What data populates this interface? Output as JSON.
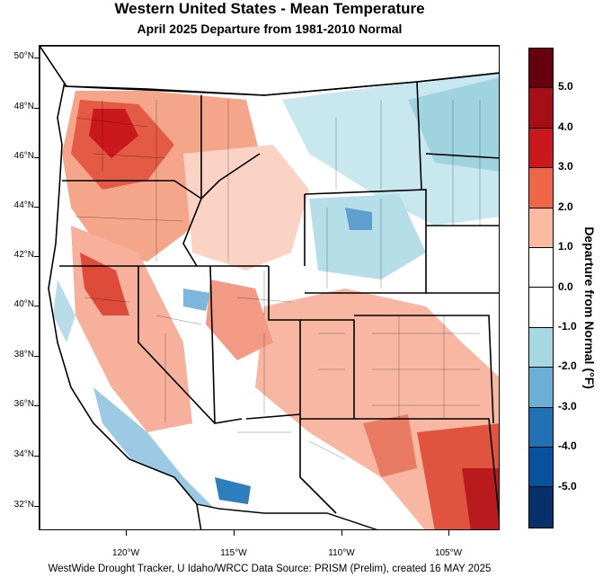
{
  "title": "Western United States - Mean Temperature",
  "subtitle": "April 2025  Departure from 1981-2010 Normal",
  "latitude_labels": [
    "50°N",
    "48°N",
    "46°N",
    "44°N",
    "42°N",
    "40°N",
    "38°N",
    "36°N",
    "34°N",
    "32°N"
  ],
  "longitude_labels": [
    "120°W",
    "115°W",
    "110°W",
    "105°W"
  ],
  "colorbar": {
    "title": "Departure from Normal (°F)",
    "labels": [
      "5.0",
      "4.0",
      "3.0",
      "2.0",
      "1.0",
      "0.0",
      "-1.0",
      "-2.0",
      "-3.0",
      "-4.0",
      "-5.0"
    ],
    "colors": [
      "#67000d",
      "#a50f15",
      "#cb181d",
      "#ef6548",
      "#fcbba1",
      "#ffffff",
      "#ffffff",
      "#a6d8e3",
      "#6baed6",
      "#2171b5",
      "#08519c",
      "#08306b"
    ]
  },
  "footer": "WestWide Drought Tracker, U Idaho/WRCC Data Source: PRISM (Prelim), created 16 MAY 2025"
}
